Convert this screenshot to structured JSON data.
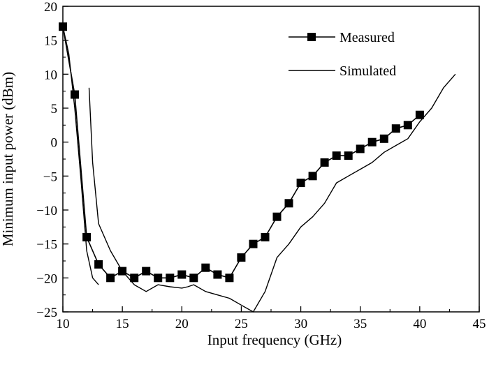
{
  "chart_data": {
    "type": "line",
    "title": "",
    "xlabel": "Input frequency (GHz)",
    "ylabel": "Minimum input power (dBm)",
    "xlim": [
      10,
      45
    ],
    "ylim": [
      -25,
      20
    ],
    "xticks": [
      10,
      15,
      20,
      25,
      30,
      35,
      40,
      45
    ],
    "yticks": [
      -25,
      -20,
      -15,
      -10,
      -5,
      0,
      5,
      10,
      15,
      20
    ],
    "grid": false,
    "legend_position": "top-right",
    "series": [
      {
        "name": "Measured",
        "marker": "square",
        "x": [
          10,
          11,
          12,
          13,
          14,
          15,
          16,
          17,
          18,
          19,
          20,
          21,
          22,
          23,
          24,
          25,
          26,
          27,
          28,
          29,
          30,
          31,
          32,
          33,
          34,
          35,
          36,
          37,
          38,
          39,
          40
        ],
        "y": [
          17,
          7,
          -14,
          -18,
          -20,
          -19,
          -20,
          -19,
          -20,
          -20,
          -19.5,
          -20,
          -18.5,
          -19.5,
          -20,
          -17,
          -15,
          -14,
          -11,
          -9,
          -6,
          -5,
          -3,
          -2,
          -2,
          -1,
          0,
          0.5,
          2,
          2.5,
          4
        ]
      },
      {
        "name": "Simulated",
        "marker": "none",
        "segments": [
          {
            "x": [
              10,
              10.5,
              11,
              11.5,
              12,
              12.5,
              13
            ],
            "y": [
              17,
              13,
              5,
              -5,
              -16,
              -20,
              -21
            ]
          },
          {
            "x": [
              12.2,
              12.5,
              13,
              14,
              15,
              16,
              17,
              18,
              19,
              20,
              20.5,
              21,
              22,
              23,
              24,
              25,
              26,
              27,
              28,
              29,
              30,
              31,
              32,
              33,
              34,
              35,
              36,
              37,
              38,
              39,
              40,
              41,
              42,
              43
            ],
            "y": [
              8,
              -3,
              -12,
              -16,
              -19,
              -21,
              -22,
              -21,
              -21.3,
              -21.5,
              -21.3,
              -21,
              -22,
              -22.5,
              -23,
              -24,
              -25,
              -22,
              -17,
              -15,
              -12.5,
              -11,
              -9,
              -6,
              -5,
              -4,
              -3,
              -1.5,
              -0.5,
              0.5,
              3,
              5,
              8,
              10
            ]
          }
        ]
      }
    ],
    "legend": [
      {
        "label": "Measured",
        "series": "Measured"
      },
      {
        "label": "Simulated",
        "series": "Simulated"
      }
    ]
  }
}
